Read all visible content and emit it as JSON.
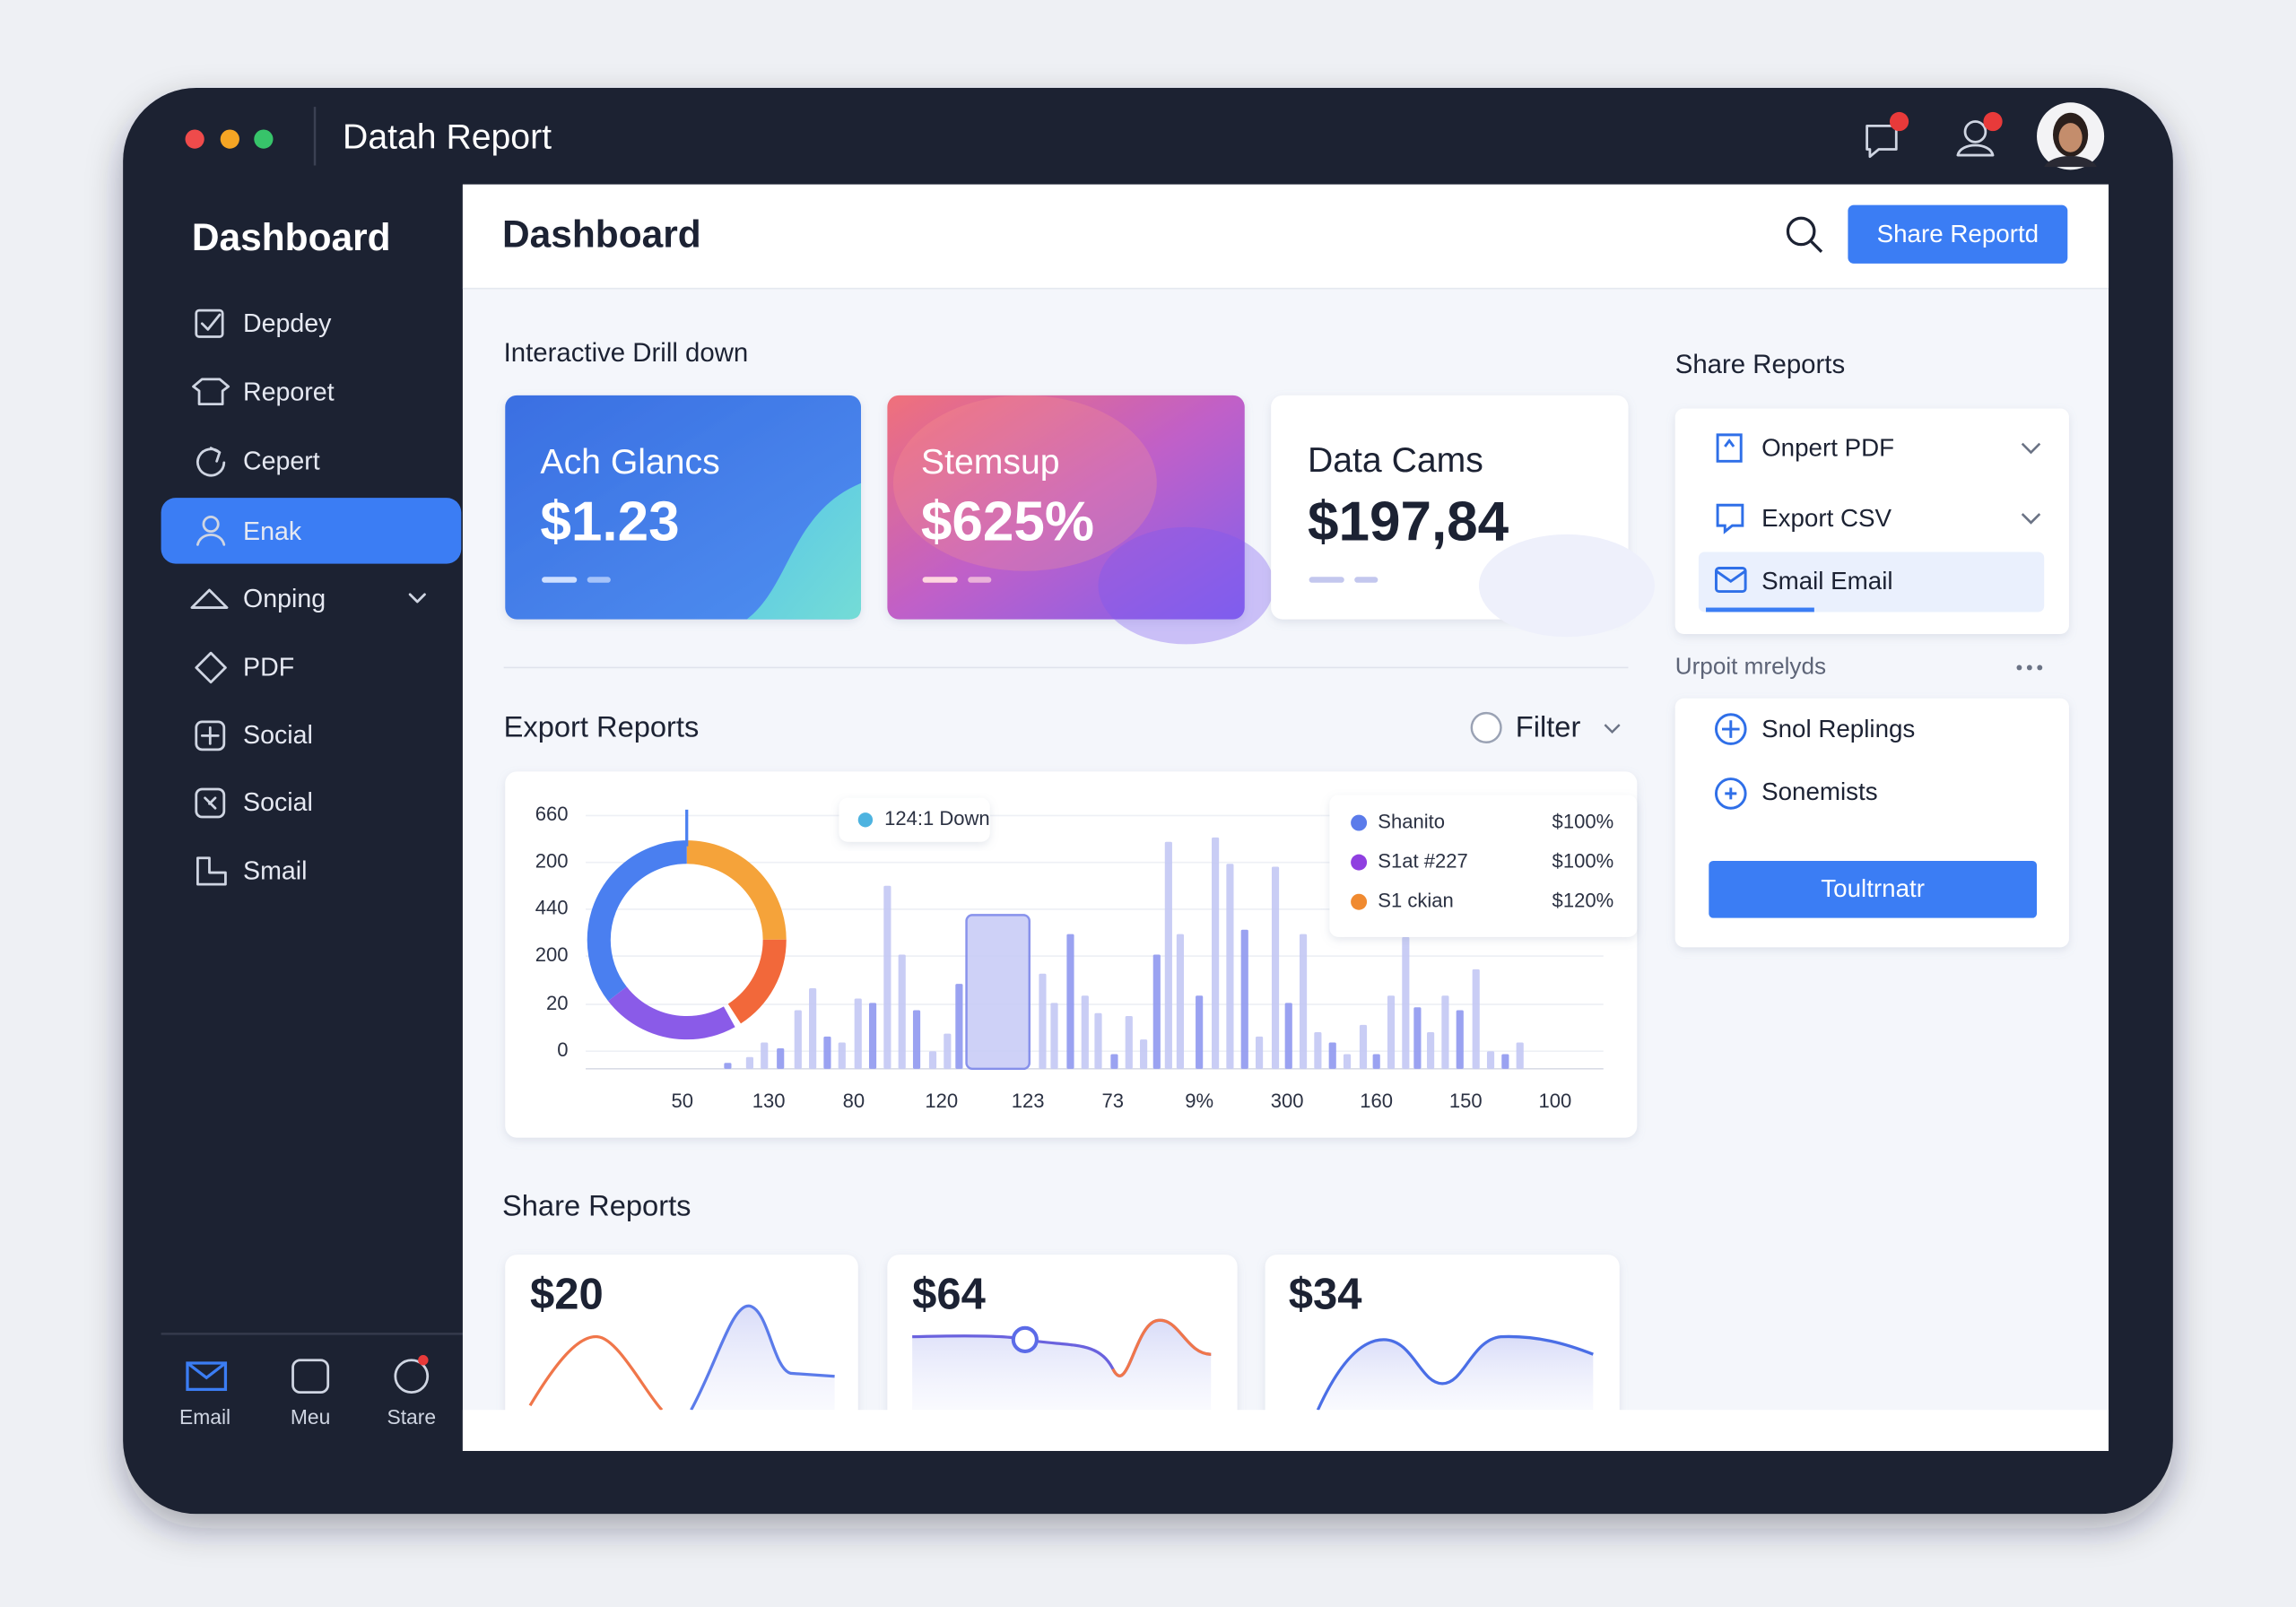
{
  "window": {
    "title": "Datah Report"
  },
  "sidebar": {
    "title": "Dashboard",
    "items": [
      "Depdey",
      "Reporet",
      "Cepert",
      "Enak",
      "Onping",
      "PDF",
      "Social",
      "Social",
      "Smail"
    ],
    "bottom_nav": [
      "Email",
      "Meu",
      "Stare"
    ]
  },
  "header": {
    "title": "Dashboard",
    "button": "Share Reportd"
  },
  "drill_down": {
    "title": "Interactive Drill down",
    "cards": [
      {
        "title": "Ach Glancs",
        "value": "$1.23"
      },
      {
        "title": "Stemsup",
        "value": "$625%"
      },
      {
        "title": "Data Cams",
        "value": "$197,84"
      }
    ]
  },
  "export_reports": {
    "title": "Export Reports",
    "filter": "Filter",
    "y_labels": [
      "660",
      "200",
      "440",
      "200",
      "20",
      "0"
    ],
    "x_labels": [
      "50",
      "130",
      "80",
      "120",
      "123",
      "73",
      "9%",
      "300",
      "160",
      "150",
      "100"
    ],
    "tag": "124:1 Down",
    "legend": [
      {
        "name": "Shanito",
        "value": "$100%"
      },
      {
        "name": "S1at #227",
        "value": "$100%"
      },
      {
        "name": "S1 ckian",
        "value": "$120%"
      }
    ]
  },
  "share_reports": {
    "title": "Share Reports",
    "cards": [
      "$20",
      "$64",
      "$34"
    ]
  },
  "side_panel": {
    "title": "Share Reports",
    "options": [
      "Onpert PDF",
      "Export CSV",
      "Smail Email"
    ],
    "section": "Urpoit mrelyds",
    "links": [
      "Snol Replings",
      "Sonemists"
    ],
    "button": "Toultrnatr"
  }
}
